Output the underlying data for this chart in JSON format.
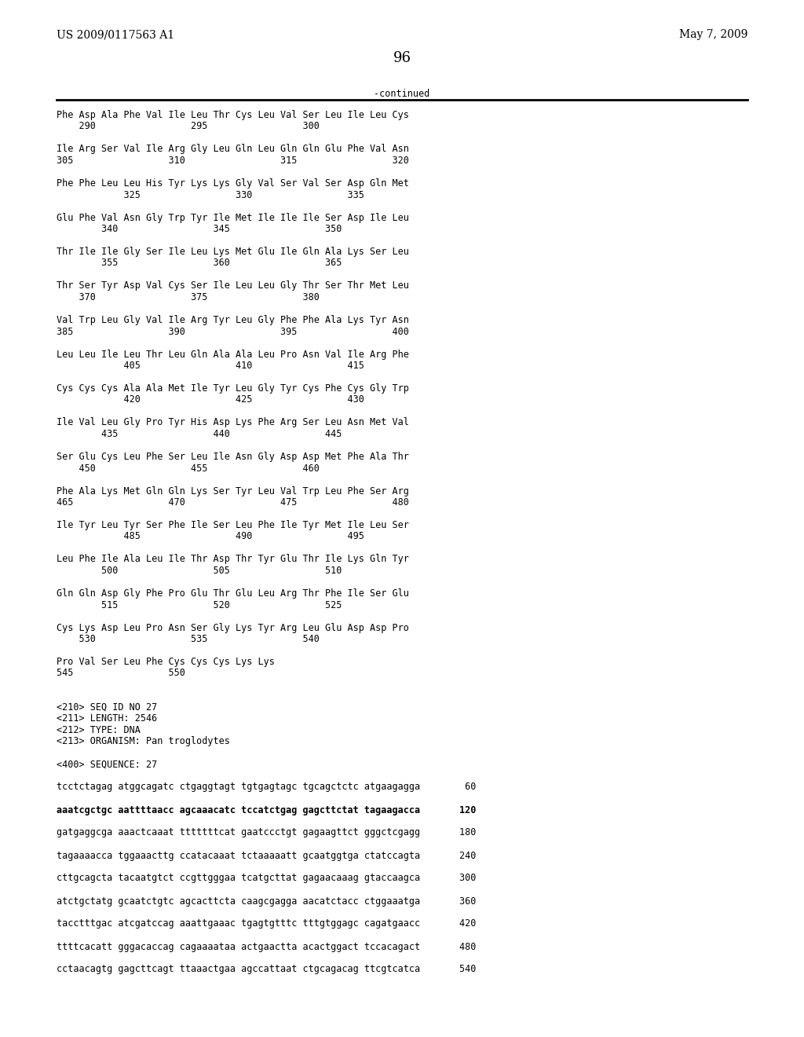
{
  "header_left": "US 2009/0117563 A1",
  "header_right": "May 7, 2009",
  "page_number": "96",
  "continued_label": "-continued",
  "background_color": "#ffffff",
  "text_color": "#000000",
  "font_size": 8.5,
  "mono_font": "DejaVu Sans Mono",
  "header_font_size": 10,
  "page_num_font_size": 13,
  "content_lines": [
    [
      "Phe Asp Ala Phe Val Ile Leu Thr Cys Leu Val Ser Leu Ile Leu Cys",
      "normal"
    ],
    [
      "    290                 295                 300",
      "normal"
    ],
    [
      "",
      "normal"
    ],
    [
      "Ile Arg Ser Val Ile Arg Gly Leu Gln Leu Gln Gln Glu Phe Val Asn",
      "normal"
    ],
    [
      "305                 310                 315                 320",
      "normal"
    ],
    [
      "",
      "normal"
    ],
    [
      "Phe Phe Leu Leu His Tyr Lys Lys Gly Val Ser Val Ser Asp Gln Met",
      "normal"
    ],
    [
      "            325                 330                 335",
      "normal"
    ],
    [
      "",
      "normal"
    ],
    [
      "Glu Phe Val Asn Gly Trp Tyr Ile Met Ile Ile Ile Ser Asp Ile Leu",
      "normal"
    ],
    [
      "        340                 345                 350",
      "normal"
    ],
    [
      "",
      "normal"
    ],
    [
      "Thr Ile Ile Gly Ser Ile Leu Lys Met Glu Ile Gln Ala Lys Ser Leu",
      "normal"
    ],
    [
      "        355                 360                 365",
      "normal"
    ],
    [
      "",
      "normal"
    ],
    [
      "Thr Ser Tyr Asp Val Cys Ser Ile Leu Leu Gly Thr Ser Thr Met Leu",
      "normal"
    ],
    [
      "    370                 375                 380",
      "normal"
    ],
    [
      "",
      "normal"
    ],
    [
      "Val Trp Leu Gly Val Ile Arg Tyr Leu Gly Phe Phe Ala Lys Tyr Asn",
      "normal"
    ],
    [
      "385                 390                 395                 400",
      "normal"
    ],
    [
      "",
      "normal"
    ],
    [
      "Leu Leu Ile Leu Thr Leu Gln Ala Ala Leu Pro Asn Val Ile Arg Phe",
      "normal"
    ],
    [
      "            405                 410                 415",
      "normal"
    ],
    [
      "",
      "normal"
    ],
    [
      "Cys Cys Cys Ala Ala Met Ile Tyr Leu Gly Tyr Cys Phe Cys Gly Trp",
      "normal"
    ],
    [
      "            420                 425                 430",
      "normal"
    ],
    [
      "",
      "normal"
    ],
    [
      "Ile Val Leu Gly Pro Tyr His Asp Lys Phe Arg Ser Leu Asn Met Val",
      "normal"
    ],
    [
      "        435                 440                 445",
      "normal"
    ],
    [
      "",
      "normal"
    ],
    [
      "Ser Glu Cys Leu Phe Ser Leu Ile Asn Gly Asp Asp Met Phe Ala Thr",
      "normal"
    ],
    [
      "    450                 455                 460",
      "normal"
    ],
    [
      "",
      "normal"
    ],
    [
      "Phe Ala Lys Met Gln Gln Lys Ser Tyr Leu Val Trp Leu Phe Ser Arg",
      "normal"
    ],
    [
      "465                 470                 475                 480",
      "normal"
    ],
    [
      "",
      "normal"
    ],
    [
      "Ile Tyr Leu Tyr Ser Phe Ile Ser Leu Phe Ile Tyr Met Ile Leu Ser",
      "normal"
    ],
    [
      "            485                 490                 495",
      "normal"
    ],
    [
      "",
      "normal"
    ],
    [
      "Leu Phe Ile Ala Leu Ile Thr Asp Thr Tyr Glu Thr Ile Lys Gln Tyr",
      "normal"
    ],
    [
      "        500                 505                 510",
      "normal"
    ],
    [
      "",
      "normal"
    ],
    [
      "Gln Gln Asp Gly Phe Pro Glu Thr Glu Leu Arg Thr Phe Ile Ser Glu",
      "normal"
    ],
    [
      "        515                 520                 525",
      "normal"
    ],
    [
      "",
      "normal"
    ],
    [
      "Cys Lys Asp Leu Pro Asn Ser Gly Lys Tyr Arg Leu Glu Asp Asp Pro",
      "normal"
    ],
    [
      "    530                 535                 540",
      "normal"
    ],
    [
      "",
      "normal"
    ],
    [
      "Pro Val Ser Leu Phe Cys Cys Cys Lys Lys",
      "normal"
    ],
    [
      "545                 550",
      "normal"
    ],
    [
      "",
      "normal"
    ],
    [
      "",
      "normal"
    ],
    [
      "<210> SEQ ID NO 27",
      "normal"
    ],
    [
      "<211> LENGTH: 2546",
      "normal"
    ],
    [
      "<212> TYPE: DNA",
      "normal"
    ],
    [
      "<213> ORGANISM: Pan troglodytes",
      "normal"
    ],
    [
      "",
      "normal"
    ],
    [
      "<400> SEQUENCE: 27",
      "normal"
    ],
    [
      "",
      "normal"
    ],
    [
      "tcctctagag atggcagatc ctgaggtagt tgtgagtagc tgcagctctc atgaagagga        60",
      "normal"
    ],
    [
      "",
      "normal"
    ],
    [
      "aaatcgctgc aattttaacc agcaaacatc tccatctgag gagcttctat tagaagacca       120",
      "bold"
    ],
    [
      "",
      "normal"
    ],
    [
      "gatgaggcga aaactcaaat tttttttcat gaatccctgt gagaagttct gggctcgagg       180",
      "normal"
    ],
    [
      "",
      "normal"
    ],
    [
      "tagaaaacca tggaaacttg ccatacaaat tctaaaaatt gcaatggtga ctatccagta       240",
      "normal"
    ],
    [
      "",
      "normal"
    ],
    [
      "cttgcagcta tacaatgtct ccgttgggaa tcatgcttat gagaacaaag gtaccaagca       300",
      "normal"
    ],
    [
      "",
      "normal"
    ],
    [
      "atctgctatg gcaatctgtc agcacttcta caagcgagga aacatctacc ctggaaatga       360",
      "normal"
    ],
    [
      "",
      "normal"
    ],
    [
      "tacctttgac atcgatccag aaattgaaac tgagtgtttc tttgtggagc cagatgaacc       420",
      "normal"
    ],
    [
      "",
      "normal"
    ],
    [
      "ttttcacatt gggacaccag cagaaaataa actgaactta acactggact tccacagact       480",
      "normal"
    ],
    [
      "",
      "normal"
    ],
    [
      "cctaacagtg gagcttcagt ttaaactgaa agccattaat ctgcagacag ttcgtcatca       540",
      "normal"
    ]
  ]
}
